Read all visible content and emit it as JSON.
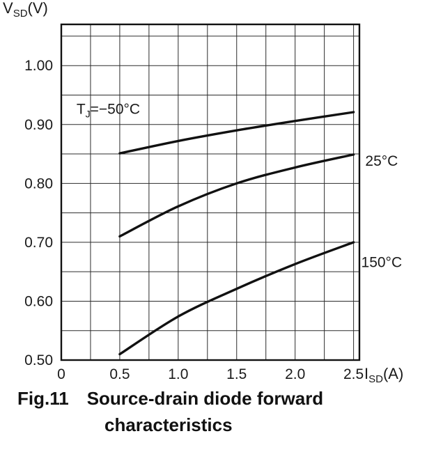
{
  "figure": {
    "caption_number": "Fig.11",
    "caption_line1": "Source-drain diode forward",
    "caption_line2": "characteristics"
  },
  "chart_data": {
    "type": "line",
    "title": "",
    "xlabel": "ISD(A)",
    "ylabel": "VSD(V)",
    "xlabel_parts": [
      {
        "t": "I"
      },
      {
        "t": "SD",
        "sub": true
      },
      {
        "t": "(A)"
      }
    ],
    "ylabel_parts": [
      {
        "t": "V"
      },
      {
        "t": "SD",
        "sub": true
      },
      {
        "t": "(V)"
      }
    ],
    "xlim": [
      0,
      2.55
    ],
    "ylim": [
      0.5,
      1.07
    ],
    "grid": true,
    "x_grid_step": 0.25,
    "x_grid_max": 2.5,
    "y_grid_step": 0.05,
    "y_grid_max": 1.05,
    "x_ticks": [
      {
        "v": 0,
        "label": "0"
      },
      {
        "v": 0.5,
        "label": "0.5"
      },
      {
        "v": 1.0,
        "label": "1.0"
      },
      {
        "v": 1.5,
        "label": "1.5"
      },
      {
        "v": 2.0,
        "label": "2.0"
      },
      {
        "v": 2.5,
        "label": "2.5"
      }
    ],
    "y_ticks": [
      {
        "v": 0.5,
        "label": "0.50"
      },
      {
        "v": 0.6,
        "label": "0.60"
      },
      {
        "v": 0.7,
        "label": "0.70"
      },
      {
        "v": 0.8,
        "label": "0.80"
      },
      {
        "v": 0.9,
        "label": "0.90"
      },
      {
        "v": 1.0,
        "label": "1.00"
      }
    ],
    "x": [
      0.5,
      1.0,
      1.5,
      2.0,
      2.5
    ],
    "series": [
      {
        "name": "TJ=−50°C",
        "values": [
          0.851,
          0.872,
          0.89,
          0.906,
          0.921
        ]
      },
      {
        "name": "25°C",
        "values": [
          0.71,
          0.761,
          0.8,
          0.827,
          0.849
        ]
      },
      {
        "name": "150°C",
        "values": [
          0.51,
          0.574,
          0.621,
          0.663,
          0.7
        ]
      }
    ],
    "annotations": [
      {
        "name": "label-tj-minus50",
        "parts": [
          {
            "t": "T"
          },
          {
            "t": "J",
            "sub": true
          },
          {
            "t": "=−50°C"
          }
        ],
        "x": 0.13,
        "y": 0.918
      },
      {
        "name": "label-25c",
        "parts": [
          {
            "t": "25°C"
          }
        ],
        "x": 2.6,
        "y": 0.83
      },
      {
        "name": "label-150c",
        "parts": [
          {
            "t": "150°C"
          }
        ],
        "x": 2.565,
        "y": 0.658
      }
    ],
    "legend_position": "inline-annotations",
    "colors": {
      "line": "#111111",
      "grid": "#2b2b2b",
      "border": "#111111",
      "text": "#1a1a1a",
      "background": "#ffffff"
    }
  }
}
